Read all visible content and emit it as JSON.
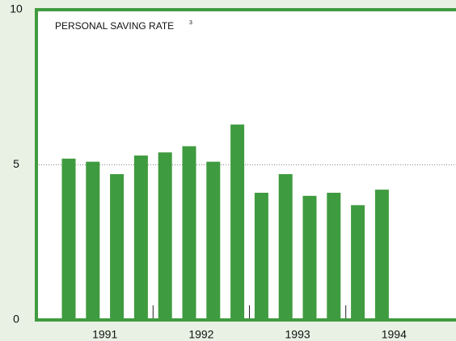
{
  "chart_data": {
    "type": "bar",
    "title": "PERSONAL SAVING RATE",
    "title_note": "3",
    "categories": [
      null,
      null,
      null,
      null,
      null,
      null,
      null,
      null,
      null,
      null,
      null,
      null,
      null,
      null
    ],
    "year_labels": [
      "1991",
      "1992",
      "1993",
      "1994"
    ],
    "values": [
      5.2,
      5.1,
      4.7,
      5.3,
      5.4,
      5.6,
      5.1,
      6.3,
      4.1,
      4.7,
      4.0,
      4.1,
      3.7,
      4.2
    ],
    "color": "#3f9b3f",
    "ylim": [
      0,
      10
    ],
    "yticks": [
      0,
      5,
      10
    ],
    "grid": true
  }
}
